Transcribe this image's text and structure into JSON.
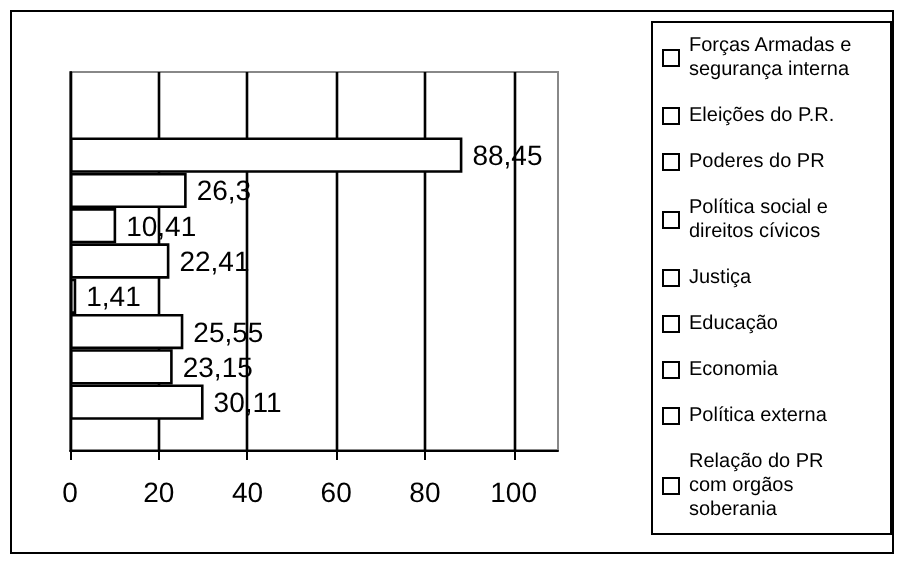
{
  "chart_data": {
    "type": "bar",
    "orientation": "horizontal",
    "categories": [
      null
    ],
    "series": [
      {
        "name": "Relação do PR com orgãos soberania",
        "color": "#ffffff",
        "values": [
          null
        ],
        "value_labels": [
          null
        ]
      },
      {
        "name": "Política externa",
        "color": "#ffffff",
        "values": [
          88.45
        ],
        "value_labels": [
          "88,45"
        ]
      },
      {
        "name": "Economia",
        "color": "#ffffff",
        "values": [
          26.3
        ],
        "value_labels": [
          "26,3"
        ]
      },
      {
        "name": "Educação",
        "color": "#ffffff",
        "values": [
          10.41
        ],
        "value_labels": [
          "10,41"
        ]
      },
      {
        "name": "Justiça",
        "color": "#ffffff",
        "values": [
          22.41
        ],
        "value_labels": [
          "22,41"
        ]
      },
      {
        "name": "Política social e direitos cívicos",
        "color": "#ffffff",
        "values": [
          1.41
        ],
        "value_labels": [
          "1,41"
        ]
      },
      {
        "name": "Poderes do PR",
        "color": "#ffffff",
        "values": [
          25.55
        ],
        "value_labels": [
          "25,55"
        ]
      },
      {
        "name": "Eleições do P.R.",
        "color": "#ffffff",
        "values": [
          23.15
        ],
        "value_labels": [
          "23,15"
        ]
      },
      {
        "name": "Forças Armadas e segurança interna",
        "color": "#ffffff",
        "values": [
          30.11
        ],
        "value_labels": [
          "30,11"
        ]
      }
    ],
    "xlim": [
      0,
      110
    ],
    "xticks": [
      0,
      20,
      40,
      60,
      80,
      100
    ],
    "grid": "x",
    "legend": "right"
  }
}
